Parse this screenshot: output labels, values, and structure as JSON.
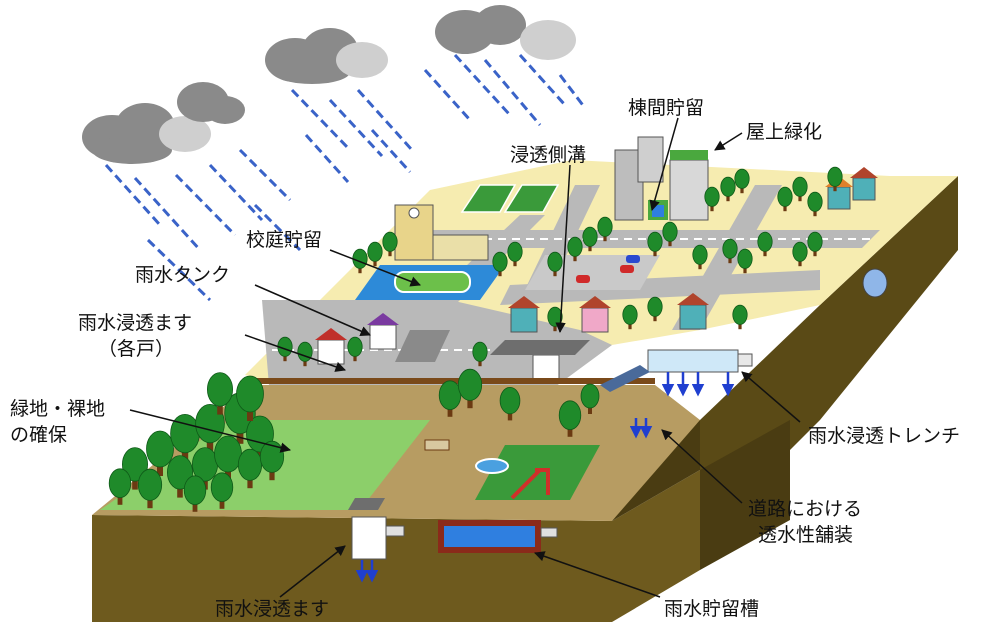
{
  "labels": {
    "bldg_storage": "棟間貯留",
    "rooftop_green": "屋上緑化",
    "infiltration_gutter": "浸透側溝",
    "schoolyard_storage": "校庭貯留",
    "rain_tank": "雨水タンク",
    "home_basin_line1": "雨水浸透ます",
    "home_basin_line2": "（各戸）",
    "green_line1": "緑地・裸地",
    "green_line2": "の確保",
    "trench": "雨水浸透トレンチ",
    "pavement_line1": "道路における",
    "pavement_line2": "透水性舗装",
    "basin": "雨水浸透ます",
    "storage_tank": "雨水貯留槽"
  },
  "colors": {
    "cloud_dark": "#8a8a8a",
    "cloud_light": "#cfcfcf",
    "rain": "#3a63c8",
    "town_ground": "#f6ecb0",
    "road": "#b9b9b9",
    "lane_mark": "#ffffff",
    "grass": "#4aa83e",
    "park_ground": "#b79c62",
    "lawn": "#8ccf6a",
    "soil": "#6e5a1e",
    "soil_dark": "#4a3c12",
    "water": "#2f7fe0",
    "tank_frame": "#8a2a1a",
    "tree": "#1f8a2a",
    "trunk": "#6b3a12"
  }
}
